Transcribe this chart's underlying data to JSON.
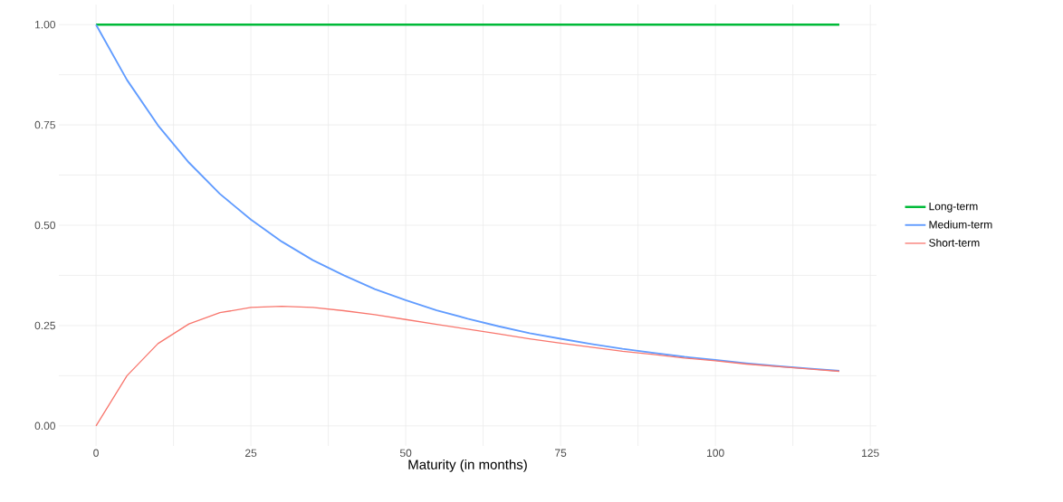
{
  "chart_data": {
    "type": "line",
    "xlabel": "Maturity (in months)",
    "x": [
      0,
      5,
      10,
      15,
      20,
      25,
      30,
      35,
      40,
      45,
      50,
      55,
      60,
      65,
      70,
      75,
      80,
      85,
      90,
      95,
      100,
      105,
      110,
      115,
      120
    ],
    "series": [
      {
        "name": "Long-term",
        "color": "#00ba38",
        "values": [
          1,
          1,
          1,
          1,
          1,
          1,
          1,
          1,
          1,
          1,
          1,
          1,
          1,
          1,
          1,
          1,
          1,
          1,
          1,
          1,
          1,
          1,
          1,
          1,
          1
        ]
      },
      {
        "name": "Medium-term",
        "color": "#619cff",
        "values": [
          1,
          0.862,
          0.749,
          0.656,
          0.578,
          0.514,
          0.459,
          0.413,
          0.375,
          0.341,
          0.313,
          0.288,
          0.267,
          0.248,
          0.231,
          0.217,
          0.204,
          0.192,
          0.182,
          0.172,
          0.164,
          0.156,
          0.149,
          0.143,
          0.137
        ]
      },
      {
        "name": "Short-term",
        "color": "#f8766d",
        "values": [
          0,
          0.125,
          0.205,
          0.254,
          0.282,
          0.295,
          0.298,
          0.295,
          0.287,
          0.277,
          0.265,
          0.253,
          0.241,
          0.229,
          0.217,
          0.206,
          0.196,
          0.186,
          0.178,
          0.169,
          0.162,
          0.154,
          0.148,
          0.142,
          0.136
        ]
      }
    ],
    "xlim": [
      -6,
      126
    ],
    "ylim": [
      -0.05,
      1.05
    ],
    "xticks": [
      0,
      {
        "value": 12.5,
        "label": null
      },
      25,
      {
        "value": 37.5,
        "label": null
      },
      50,
      {
        "value": 62.5,
        "label": null
      },
      75,
      {
        "value": 87.5,
        "label": null
      },
      100,
      {
        "value": 112.5,
        "label": null
      },
      125
    ],
    "yticks": [
      {
        "value": 0,
        "label": "0.00"
      },
      {
        "value": 0.125,
        "label": null
      },
      {
        "value": 0.25,
        "label": "0.25"
      },
      {
        "value": 0.375,
        "label": null
      },
      {
        "value": 0.5,
        "label": "0.50"
      },
      {
        "value": 0.625,
        "label": null
      },
      {
        "value": 0.75,
        "label": "0.75"
      },
      {
        "value": 0.875,
        "label": null
      },
      {
        "value": 1,
        "label": "1.00"
      }
    ],
    "grid": true,
    "legend": "right",
    "marker": "none",
    "line_style": "solid"
  }
}
